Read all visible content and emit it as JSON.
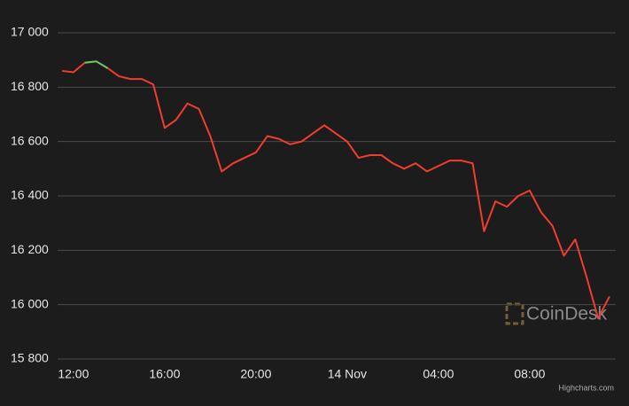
{
  "chart_data": {
    "type": "line",
    "categories": [
      null,
      "12:00",
      null,
      null,
      null,
      null,
      null,
      null,
      null,
      "16:00",
      null,
      null,
      null,
      null,
      null,
      null,
      null,
      "20:00",
      null,
      null,
      null,
      null,
      null,
      null,
      null,
      "14 Nov",
      null,
      null,
      null,
      null,
      null,
      null,
      null,
      "04:00",
      null,
      null,
      null,
      null,
      null,
      null,
      null,
      "08:00",
      null,
      null,
      null,
      null,
      null,
      null,
      null
    ],
    "values": [
      16860,
      16855,
      16890,
      16895,
      16870,
      16840,
      16830,
      16830,
      16810,
      16650,
      16680,
      16740,
      16720,
      16620,
      16490,
      16520,
      16540,
      16560,
      16620,
      16610,
      16590,
      16600,
      16630,
      16660,
      16630,
      16600,
      16540,
      16550,
      16550,
      16520,
      16500,
      16520,
      16490,
      16510,
      16530,
      16530,
      16520,
      16270,
      16380,
      16360,
      16400,
      16420,
      16340,
      16290,
      16180,
      16240,
      16100,
      15950,
      16030
    ],
    "color": "#f23c2e",
    "up_color": "#5ecb6c",
    "ylim": [
      15800,
      17000
    ],
    "yticks": [
      {
        "value": 15800,
        "label": "15 800"
      },
      {
        "value": 16000,
        "label": "16 000"
      },
      {
        "value": 16200,
        "label": "16 200"
      },
      {
        "value": 16400,
        "label": "16 400"
      },
      {
        "value": 16600,
        "label": "16 600"
      },
      {
        "value": 16800,
        "label": "16 800"
      },
      {
        "value": 17000,
        "label": "17 000"
      }
    ],
    "grid": true,
    "watermark": "CoinDesk",
    "credit": "Highcharts.com"
  }
}
